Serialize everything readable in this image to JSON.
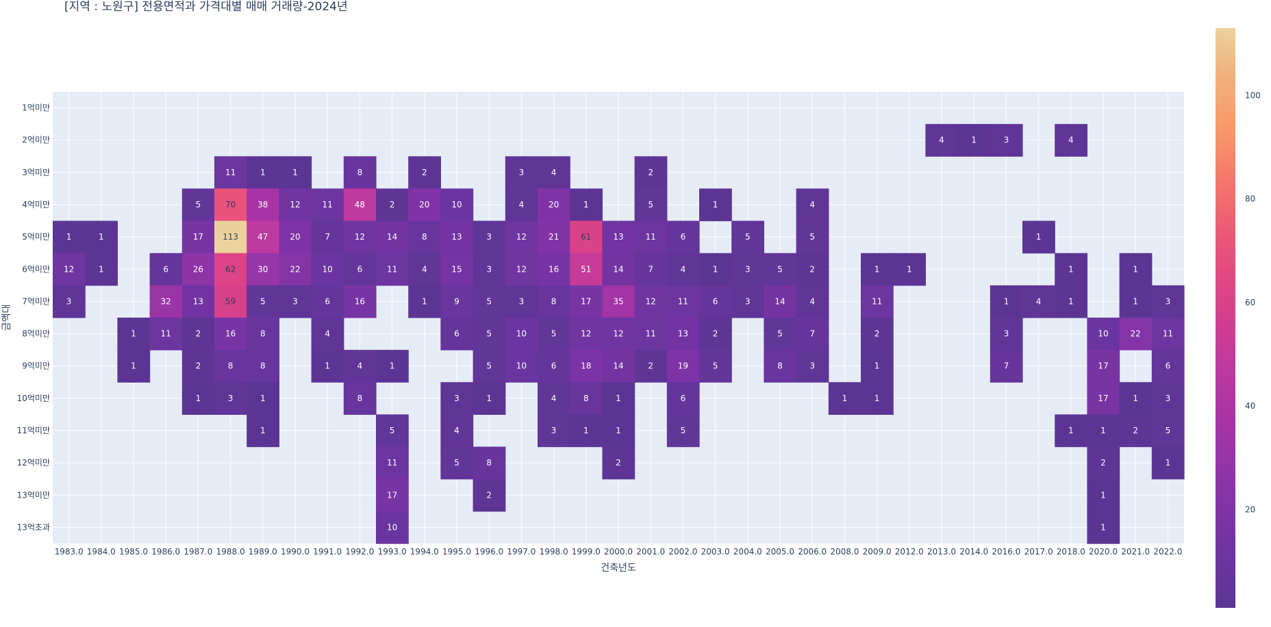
{
  "chart_data": {
    "type": "heatmap",
    "title": "[지역 : 노원구] 전용면적과 가격대별 매매 거래량-2024년",
    "xlabel": "건축년도",
    "ylabel": "금액대",
    "x": [
      "1983.0",
      "1984.0",
      "1985.0",
      "1986.0",
      "1987.0",
      "1988.0",
      "1989.0",
      "1990.0",
      "1991.0",
      "1992.0",
      "1993.0",
      "1994.0",
      "1995.0",
      "1996.0",
      "1997.0",
      "1998.0",
      "1999.0",
      "2000.0",
      "2001.0",
      "2002.0",
      "2003.0",
      "2004.0",
      "2005.0",
      "2006.0",
      "2008.0",
      "2009.0",
      "2012.0",
      "2013.0",
      "2014.0",
      "2016.0",
      "2017.0",
      "2018.0",
      "2020.0",
      "2021.0",
      "2022.0"
    ],
    "y": [
      "1억미만",
      "2억미만",
      "3억미만",
      "4억미만",
      "5억미만",
      "6억미만",
      "7억미만",
      "8억미만",
      "9억미만",
      "10억미만",
      "11억미만",
      "12억미만",
      "13억미만",
      "13억초과"
    ],
    "z": [
      [
        null,
        null,
        null,
        null,
        null,
        null,
        null,
        null,
        null,
        null,
        null,
        null,
        null,
        null,
        null,
        null,
        null,
        null,
        null,
        null,
        null,
        null,
        null,
        null,
        null,
        null,
        null,
        null,
        null,
        null,
        null,
        null,
        null,
        null,
        null
      ],
      [
        null,
        null,
        null,
        null,
        null,
        null,
        null,
        null,
        null,
        null,
        null,
        null,
        null,
        null,
        null,
        null,
        null,
        null,
        null,
        null,
        null,
        null,
        null,
        null,
        null,
        null,
        null,
        4,
        1,
        3,
        null,
        4,
        null,
        null,
        null
      ],
      [
        null,
        null,
        null,
        null,
        null,
        11,
        1,
        1,
        null,
        8,
        null,
        2,
        null,
        null,
        3,
        4,
        null,
        null,
        2,
        null,
        null,
        null,
        null,
        null,
        null,
        null,
        null,
        null,
        null,
        null,
        null,
        null,
        null,
        null,
        null
      ],
      [
        null,
        null,
        null,
        null,
        5,
        70,
        38,
        12,
        11,
        48,
        2,
        20,
        10,
        null,
        4,
        20,
        1,
        null,
        5,
        null,
        1,
        null,
        null,
        4,
        null,
        null,
        null,
        null,
        null,
        null,
        null,
        null,
        null,
        null,
        null
      ],
      [
        1,
        1,
        null,
        null,
        17,
        113,
        47,
        20,
        7,
        12,
        14,
        8,
        13,
        3,
        12,
        21,
        61,
        13,
        11,
        6,
        null,
        5,
        null,
        5,
        null,
        null,
        null,
        null,
        null,
        null,
        1,
        null,
        null,
        null,
        null
      ],
      [
        12,
        1,
        null,
        6,
        26,
        62,
        30,
        22,
        10,
        6,
        11,
        4,
        15,
        3,
        12,
        16,
        51,
        14,
        7,
        4,
        1,
        3,
        5,
        2,
        null,
        1,
        1,
        null,
        null,
        null,
        null,
        1,
        null,
        1,
        null
      ],
      [
        3,
        null,
        null,
        32,
        13,
        59,
        5,
        3,
        6,
        16,
        null,
        1,
        9,
        5,
        3,
        8,
        17,
        35,
        12,
        11,
        6,
        3,
        14,
        4,
        null,
        11,
        null,
        null,
        null,
        1,
        4,
        1,
        null,
        1,
        3
      ],
      [
        null,
        null,
        1,
        11,
        2,
        16,
        8,
        null,
        4,
        null,
        null,
        null,
        6,
        5,
        10,
        5,
        12,
        12,
        11,
        13,
        2,
        null,
        5,
        7,
        null,
        2,
        null,
        null,
        null,
        3,
        null,
        null,
        10,
        22,
        11
      ],
      [
        null,
        null,
        1,
        null,
        2,
        8,
        8,
        null,
        1,
        4,
        1,
        null,
        null,
        5,
        10,
        6,
        18,
        14,
        2,
        19,
        5,
        null,
        8,
        3,
        null,
        1,
        null,
        null,
        null,
        7,
        null,
        null,
        17,
        null,
        6
      ],
      [
        null,
        null,
        null,
        null,
        1,
        3,
        1,
        null,
        null,
        8,
        null,
        null,
        3,
        1,
        null,
        4,
        8,
        1,
        null,
        6,
        null,
        null,
        null,
        null,
        1,
        1,
        null,
        null,
        null,
        null,
        null,
        null,
        17,
        1,
        3
      ],
      [
        null,
        null,
        null,
        null,
        null,
        null,
        1,
        null,
        null,
        null,
        5,
        null,
        4,
        null,
        null,
        3,
        1,
        1,
        null,
        5,
        null,
        null,
        null,
        null,
        null,
        null,
        null,
        null,
        null,
        null,
        null,
        1,
        1,
        2,
        5
      ],
      [
        null,
        null,
        null,
        null,
        null,
        null,
        null,
        null,
        null,
        null,
        11,
        null,
        5,
        8,
        null,
        null,
        null,
        2,
        null,
        null,
        null,
        null,
        null,
        null,
        null,
        null,
        null,
        null,
        null,
        null,
        null,
        null,
        2,
        null,
        1
      ],
      [
        null,
        null,
        null,
        null,
        null,
        null,
        null,
        null,
        null,
        null,
        17,
        null,
        null,
        2,
        null,
        null,
        null,
        null,
        null,
        null,
        null,
        null,
        null,
        null,
        null,
        null,
        null,
        null,
        null,
        null,
        null,
        null,
        1,
        null,
        null
      ],
      [
        null,
        null,
        null,
        null,
        null,
        null,
        null,
        null,
        null,
        null,
        10,
        null,
        null,
        null,
        null,
        null,
        null,
        null,
        null,
        null,
        null,
        null,
        null,
        null,
        null,
        null,
        null,
        null,
        null,
        null,
        null,
        null,
        1,
        null,
        null
      ]
    ],
    "zrange": [
      1,
      113
    ],
    "colorbar_ticks": [
      100,
      80,
      60,
      40,
      20
    ],
    "colorscale": [
      "#5c3594",
      "#6b35a0",
      "#7f33a6",
      "#9435a8",
      "#a933a4",
      "#be3a9f",
      "#d33e8e",
      "#e44a80",
      "#ee5f73",
      "#f57c6a",
      "#f89b68",
      "#f1b07b",
      "#ebd29c"
    ],
    "grid": true
  }
}
